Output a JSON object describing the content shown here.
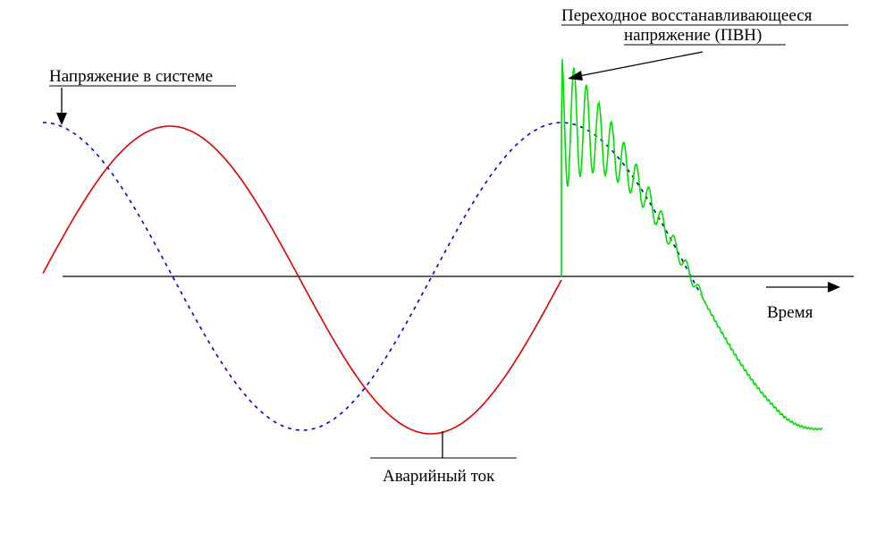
{
  "labels": {
    "system_voltage": "Напряжение в системе",
    "trv_line1": "Переходное восстанавливающееся",
    "trv_line2": "напряжение (ПВН)",
    "time": "Время",
    "fault_current": "Аварийный ток"
  },
  "colors": {
    "system_voltage": "#0000cc",
    "fault_current": "#dd0000",
    "trv": "#00dd00",
    "axis": "#000000"
  }
}
